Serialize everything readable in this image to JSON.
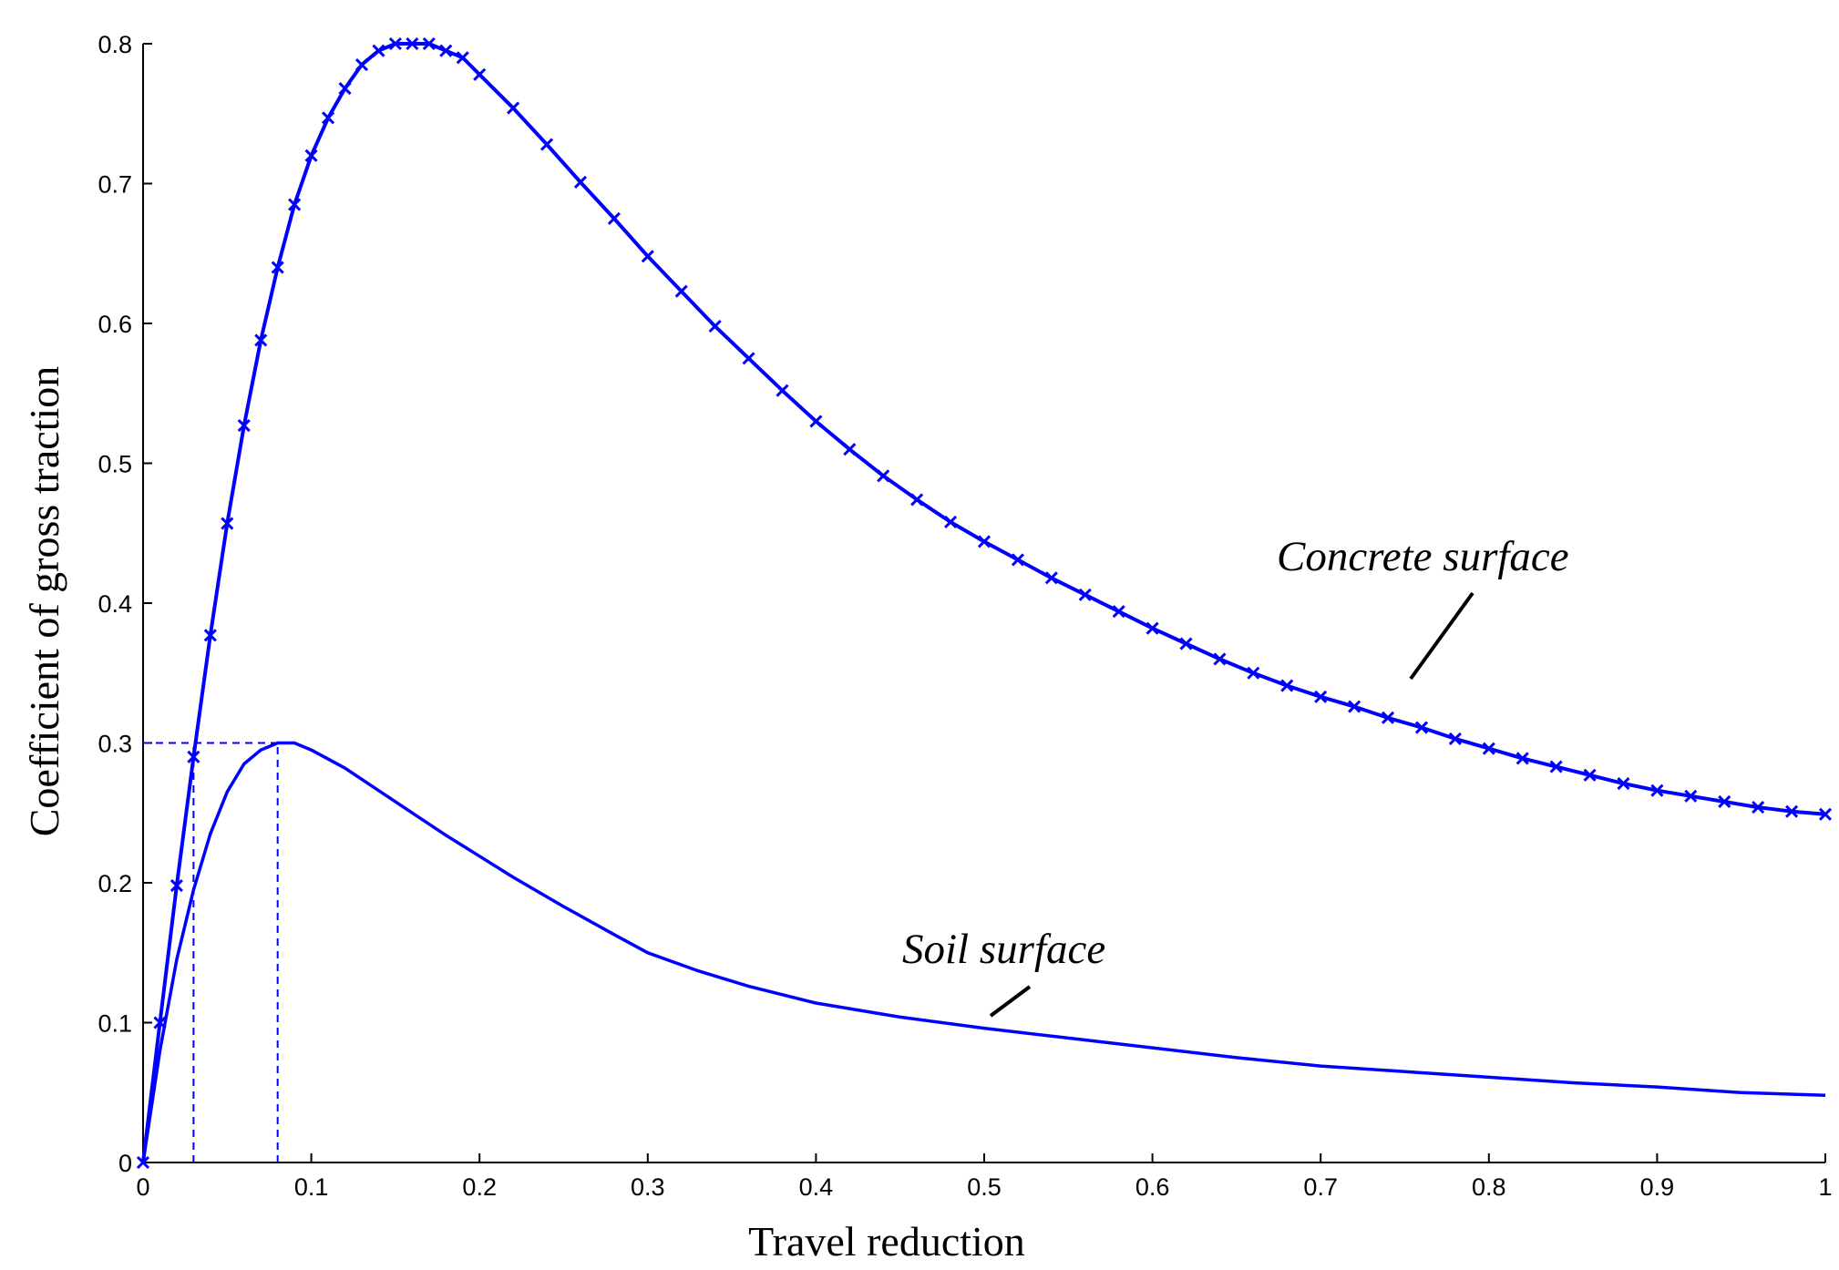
{
  "chart_data": {
    "type": "line",
    "xlabel": "Travel reduction",
    "ylabel": "Coefficient of gross traction",
    "xlim": [
      0,
      1
    ],
    "ylim": [
      0,
      0.8
    ],
    "xticks": [
      0,
      0.1,
      0.2,
      0.3,
      0.4,
      0.5,
      0.6,
      0.7,
      0.8,
      0.9,
      1
    ],
    "xtick_labels": [
      "0",
      "0.1",
      "0.2",
      "0.3",
      "0.4",
      "0.5",
      "0.6",
      "0.7",
      "0.8",
      "0.9",
      "1"
    ],
    "yticks": [
      0,
      0.1,
      0.2,
      0.3,
      0.4,
      0.5,
      0.6,
      0.7,
      0.8
    ],
    "ytick_labels": [
      "0",
      "0.1",
      "0.2",
      "0.3",
      "0.4",
      "0.5",
      "0.6",
      "0.7",
      "0.8"
    ],
    "grid": false,
    "line_color": "#0000ff",
    "series": [
      {
        "name": "Concrete surface",
        "marker": "x",
        "x": [
          0,
          0.01,
          0.02,
          0.03,
          0.04,
          0.05,
          0.06,
          0.07,
          0.08,
          0.09,
          0.1,
          0.11,
          0.12,
          0.13,
          0.14,
          0.15,
          0.16,
          0.17,
          0.18,
          0.19,
          0.2,
          0.22,
          0.24,
          0.26,
          0.28,
          0.3,
          0.32,
          0.34,
          0.36,
          0.38,
          0.4,
          0.42,
          0.44,
          0.46,
          0.48,
          0.5,
          0.52,
          0.54,
          0.56,
          0.58,
          0.6,
          0.62,
          0.64,
          0.66,
          0.68,
          0.7,
          0.72,
          0.74,
          0.76,
          0.78,
          0.8,
          0.82,
          0.84,
          0.86,
          0.88,
          0.9,
          0.92,
          0.94,
          0.96,
          0.98,
          1.0
        ],
        "y": [
          0,
          0.1,
          0.198,
          0.29,
          0.377,
          0.457,
          0.527,
          0.588,
          0.64,
          0.685,
          0.72,
          0.747,
          0.768,
          0.785,
          0.795,
          0.8,
          0.8,
          0.8,
          0.795,
          0.79,
          0.778,
          0.754,
          0.728,
          0.701,
          0.675,
          0.648,
          0.623,
          0.598,
          0.575,
          0.552,
          0.53,
          0.51,
          0.491,
          0.474,
          0.458,
          0.444,
          0.431,
          0.418,
          0.406,
          0.394,
          0.382,
          0.371,
          0.36,
          0.35,
          0.341,
          0.333,
          0.326,
          0.318,
          0.311,
          0.303,
          0.296,
          0.289,
          0.283,
          0.277,
          0.271,
          0.266,
          0.262,
          0.258,
          0.254,
          0.251,
          0.249
        ]
      },
      {
        "name": "Soil surface",
        "marker": "none",
        "x": [
          0,
          0.01,
          0.02,
          0.03,
          0.04,
          0.05,
          0.06,
          0.07,
          0.08,
          0.09,
          0.1,
          0.12,
          0.14,
          0.16,
          0.18,
          0.2,
          0.22,
          0.25,
          0.28,
          0.3,
          0.33,
          0.36,
          0.4,
          0.45,
          0.5,
          0.55,
          0.6,
          0.65,
          0.7,
          0.75,
          0.8,
          0.85,
          0.9,
          0.95,
          1.0
        ],
        "y": [
          0,
          0.08,
          0.145,
          0.195,
          0.235,
          0.265,
          0.285,
          0.295,
          0.3,
          0.3,
          0.295,
          0.282,
          0.266,
          0.25,
          0.234,
          0.219,
          0.204,
          0.183,
          0.163,
          0.15,
          0.137,
          0.126,
          0.114,
          0.104,
          0.096,
          0.089,
          0.082,
          0.075,
          0.069,
          0.065,
          0.061,
          0.057,
          0.054,
          0.05,
          0.048
        ]
      }
    ],
    "reference_lines": [
      {
        "from": [
          0,
          0.3
        ],
        "to": [
          0.08,
          0.3
        ]
      },
      {
        "from": [
          0.03,
          0
        ],
        "to": [
          0.03,
          0.3
        ]
      },
      {
        "from": [
          0.08,
          0
        ],
        "to": [
          0.08,
          0.3
        ]
      }
    ],
    "annotations": [
      {
        "text": "Concrete surface",
        "points_to": [
          0.75,
          0.33
        ]
      },
      {
        "text": "Soil surface",
        "points_to": [
          0.51,
          0.1
        ]
      }
    ]
  }
}
